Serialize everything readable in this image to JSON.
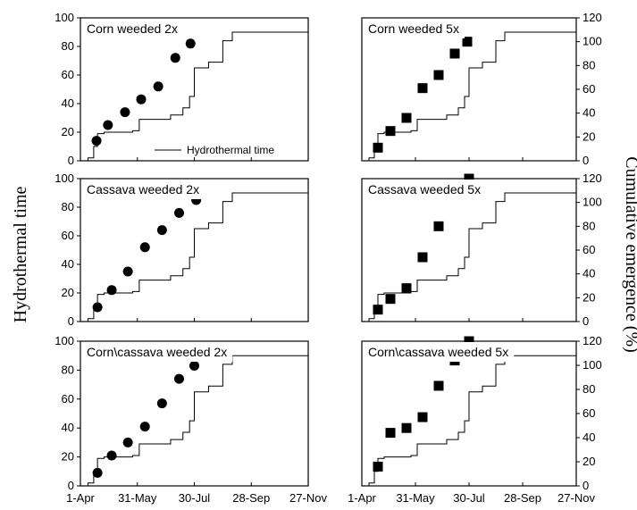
{
  "figure": {
    "left_axis_label": "Hydrothermal time",
    "right_axis_label": "Cumulative emergence (%)",
    "legend_label": "Hydrothermal time",
    "x_tick_labels": [
      "1-Apr",
      "31-May",
      "30-Jul",
      "28-Sep",
      "27-Nov"
    ]
  },
  "chart_data": [
    {
      "type": "scatter",
      "title": "Corn weeded 2x",
      "marker": "circle",
      "x": [
        "1-Apr",
        "31-May",
        "30-Jul",
        "28-Sep",
        "27-Nov"
      ],
      "xlim_days": [
        0,
        240
      ],
      "ylim": [
        0,
        100
      ],
      "ylim_right": [
        0,
        120
      ],
      "points_hydrothermal_days": [
        [
          17,
          14
        ],
        [
          29,
          25
        ],
        [
          47,
          34
        ],
        [
          64,
          43
        ],
        [
          82,
          52
        ],
        [
          100,
          72
        ],
        [
          116,
          82
        ]
      ],
      "line_hydrothermal": [
        [
          0,
          0
        ],
        [
          8,
          2
        ],
        [
          14,
          10
        ],
        [
          18,
          19
        ],
        [
          25,
          20
        ],
        [
          55,
          21
        ],
        [
          62,
          29
        ],
        [
          95,
          32
        ],
        [
          108,
          37
        ],
        [
          115,
          45
        ],
        [
          120,
          65
        ],
        [
          135,
          69
        ],
        [
          150,
          84
        ],
        [
          160,
          90
        ],
        [
          180,
          90
        ]
      ],
      "legend": "Hydrothermal time"
    },
    {
      "type": "scatter",
      "title": "Corn weeded 5x",
      "marker": "square",
      "xlim_days": [
        0,
        240
      ],
      "ylim": [
        0,
        100
      ],
      "ylim_right": [
        0,
        120
      ],
      "points_emergence_days": [
        [
          18,
          11
        ],
        [
          32,
          25
        ],
        [
          50,
          36
        ],
        [
          68,
          61
        ],
        [
          86,
          72
        ],
        [
          104,
          90
        ],
        [
          118,
          100
        ]
      ],
      "line_hydrothermal": [
        [
          0,
          0
        ],
        [
          8,
          2
        ],
        [
          14,
          10
        ],
        [
          18,
          19
        ],
        [
          25,
          20
        ],
        [
          55,
          21
        ],
        [
          62,
          29
        ],
        [
          95,
          32
        ],
        [
          108,
          37
        ],
        [
          115,
          45
        ],
        [
          120,
          65
        ],
        [
          135,
          69
        ],
        [
          150,
          84
        ],
        [
          160,
          90
        ],
        [
          180,
          90
        ]
      ]
    },
    {
      "type": "scatter",
      "title": "Cassava weeded 2x",
      "marker": "circle",
      "xlim_days": [
        0,
        240
      ],
      "ylim": [
        0,
        100
      ],
      "ylim_right": [
        0,
        120
      ],
      "points_hydrothermal_days": [
        [
          18,
          10
        ],
        [
          33,
          22
        ],
        [
          50,
          35
        ],
        [
          68,
          52
        ],
        [
          86,
          64
        ],
        [
          104,
          76
        ],
        [
          122,
          85
        ]
      ],
      "line_hydrothermal": [
        [
          0,
          0
        ],
        [
          8,
          2
        ],
        [
          14,
          10
        ],
        [
          18,
          19
        ],
        [
          25,
          20
        ],
        [
          55,
          21
        ],
        [
          62,
          29
        ],
        [
          95,
          32
        ],
        [
          108,
          37
        ],
        [
          115,
          45
        ],
        [
          120,
          65
        ],
        [
          135,
          69
        ],
        [
          150,
          84
        ],
        [
          160,
          90
        ],
        [
          180,
          90
        ]
      ]
    },
    {
      "type": "scatter",
      "title": "Cassava weeded 5x",
      "marker": "square",
      "xlim_days": [
        0,
        240
      ],
      "ylim": [
        0,
        100
      ],
      "ylim_right": [
        0,
        120
      ],
      "points_emergence_days": [
        [
          18,
          10
        ],
        [
          32,
          19
        ],
        [
          50,
          28
        ],
        [
          68,
          54
        ],
        [
          86,
          80
        ],
        [
          104,
          109
        ],
        [
          120,
          120
        ]
      ],
      "line_hydrothermal": [
        [
          0,
          0
        ],
        [
          8,
          2
        ],
        [
          14,
          10
        ],
        [
          18,
          19
        ],
        [
          25,
          20
        ],
        [
          55,
          21
        ],
        [
          62,
          29
        ],
        [
          95,
          32
        ],
        [
          108,
          37
        ],
        [
          115,
          45
        ],
        [
          120,
          65
        ],
        [
          135,
          69
        ],
        [
          150,
          84
        ],
        [
          160,
          90
        ],
        [
          180,
          90
        ]
      ]
    },
    {
      "type": "scatter",
      "title": "Corn\\cassava weeded 2x",
      "marker": "circle",
      "xlim_days": [
        0,
        240
      ],
      "ylim": [
        0,
        100
      ],
      "ylim_right": [
        0,
        120
      ],
      "points_hydrothermal_days": [
        [
          18,
          9
        ],
        [
          33,
          21
        ],
        [
          50,
          30
        ],
        [
          68,
          41
        ],
        [
          86,
          57
        ],
        [
          104,
          74
        ],
        [
          120,
          83
        ]
      ],
      "line_hydrothermal": [
        [
          0,
          0
        ],
        [
          8,
          2
        ],
        [
          14,
          10
        ],
        [
          18,
          19
        ],
        [
          25,
          20
        ],
        [
          55,
          21
        ],
        [
          62,
          29
        ],
        [
          95,
          32
        ],
        [
          108,
          37
        ],
        [
          115,
          45
        ],
        [
          120,
          65
        ],
        [
          135,
          69
        ],
        [
          150,
          84
        ],
        [
          160,
          90
        ],
        [
          180,
          90
        ]
      ]
    },
    {
      "type": "scatter",
      "title": "Corn\\cassava weeded 5x",
      "marker": "square",
      "xlim_days": [
        0,
        240
      ],
      "ylim": [
        0,
        100
      ],
      "ylim_right": [
        0,
        120
      ],
      "points_emergence_days": [
        [
          18,
          16
        ],
        [
          32,
          44
        ],
        [
          50,
          48
        ],
        [
          68,
          57
        ],
        [
          86,
          83
        ],
        [
          104,
          104
        ],
        [
          120,
          120
        ]
      ],
      "line_hydrothermal": [
        [
          0,
          0
        ],
        [
          8,
          2
        ],
        [
          14,
          10
        ],
        [
          18,
          19
        ],
        [
          25,
          20
        ],
        [
          55,
          21
        ],
        [
          62,
          29
        ],
        [
          95,
          32
        ],
        [
          108,
          37
        ],
        [
          115,
          45
        ],
        [
          120,
          65
        ],
        [
          135,
          69
        ],
        [
          150,
          84
        ],
        [
          160,
          90
        ],
        [
          180,
          90
        ]
      ]
    }
  ]
}
